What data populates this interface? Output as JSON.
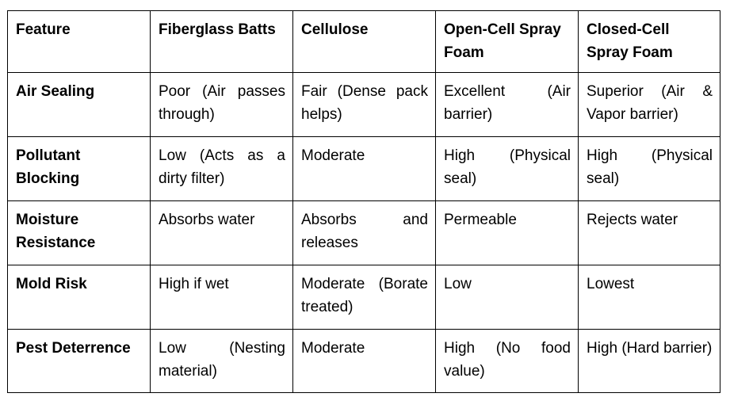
{
  "table": {
    "headers": [
      "Feature",
      "Fiberglass Batts",
      "Cellulose",
      "Open-Cell Spray Foam",
      "Closed-Cell Spray Foam"
    ],
    "rows": [
      {
        "feature": "Air Sealing",
        "cells": [
          "Poor (Air passes through)",
          "Fair (Dense pack helps)",
          "Excellent (Air barrier)",
          "Superior (Air & Vapor barrier)"
        ]
      },
      {
        "feature": "Pollutant Blocking",
        "cells": [
          "Low (Acts as a dirty filter)",
          "Moderate",
          "High (Physical seal)",
          "High (Physical seal)"
        ]
      },
      {
        "feature": "Moisture Resistance",
        "cells": [
          "Absorbs water",
          "Absorbs and releases",
          "Permeable",
          "Rejects water"
        ]
      },
      {
        "feature": "Mold Risk",
        "cells": [
          "High if wet",
          "Moderate (Borate treated)",
          "Low",
          "Lowest"
        ]
      },
      {
        "feature": "Pest Deterrence",
        "cells": [
          "Low (Nesting material)",
          "Moderate",
          "High (No food value)",
          "High (Hard barrier)"
        ]
      }
    ]
  }
}
